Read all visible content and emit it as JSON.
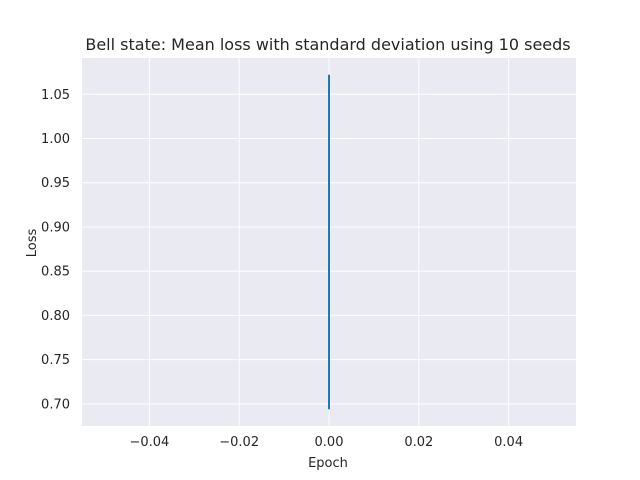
{
  "chart_data": {
    "type": "line",
    "title": "Bell state: Mean loss with standard deviation using 10 seeds",
    "xlabel": "Epoch",
    "ylabel": "Loss",
    "xlim": [
      -0.055,
      0.055
    ],
    "ylim": [
      0.675,
      1.091
    ],
    "x_ticks": [
      -0.04,
      -0.02,
      0.0,
      0.02,
      0.04
    ],
    "x_tick_labels": [
      "−0.04",
      "−0.02",
      "0.00",
      "0.02",
      "0.04"
    ],
    "y_ticks": [
      0.7,
      0.75,
      0.8,
      0.85,
      0.9,
      0.95,
      1.0,
      1.05
    ],
    "y_tick_labels": [
      "0.70",
      "0.75",
      "0.80",
      "0.85",
      "0.90",
      "0.95",
      "1.00",
      "1.05"
    ],
    "grid": true,
    "series": [
      {
        "x": [
          0.0
        ],
        "mean": [
          0.883
        ],
        "std_band": [
          [
            0.694,
            1.072
          ]
        ],
        "color": "#1f77b4"
      }
    ],
    "style": {
      "plot_background": "#eaeaf2",
      "grid_color": "#ffffff"
    }
  }
}
